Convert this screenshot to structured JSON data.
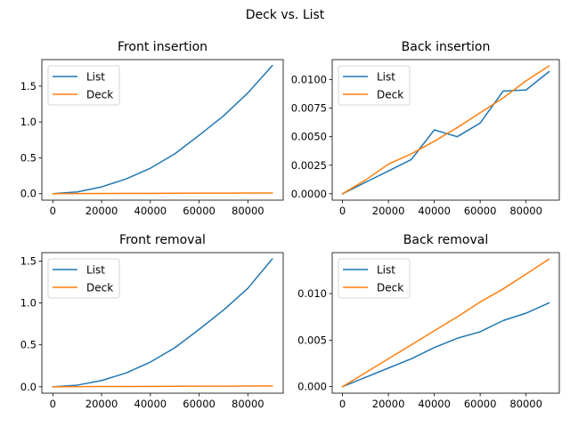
{
  "figure": {
    "title": "Deck vs. List"
  },
  "chart_data": [
    {
      "type": "line",
      "title": "Front insertion",
      "xlabel": "",
      "ylabel": "",
      "grid": false,
      "legend": "upper-left",
      "x": [
        0,
        10000,
        20000,
        30000,
        40000,
        50000,
        60000,
        70000,
        80000,
        90000
      ],
      "xlim": [
        -4500,
        94500
      ],
      "ylim": [
        -0.09,
        1.87
      ],
      "xticks": [
        0,
        20000,
        40000,
        60000,
        80000
      ],
      "xtick_labels": [
        "0",
        "20000",
        "40000",
        "60000",
        "80000"
      ],
      "yticks": [
        0,
        0.5,
        1.0,
        1.5
      ],
      "ytick_labels": [
        "0.0",
        "0.5",
        "1.0",
        "1.5"
      ],
      "series": [
        {
          "name": "List",
          "color": "#1f77b4",
          "values": [
            0.0,
            0.025,
            0.095,
            0.205,
            0.355,
            0.555,
            0.815,
            1.085,
            1.405,
            1.785
          ]
        },
        {
          "name": "Deck",
          "color": "#ff7f0e",
          "values": [
            0.0,
            0.002,
            0.003,
            0.004,
            0.005,
            0.006,
            0.007,
            0.008,
            0.009,
            0.01
          ]
        }
      ]
    },
    {
      "type": "line",
      "title": "Back insertion",
      "xlabel": "",
      "ylabel": "",
      "grid": false,
      "legend": "upper-left",
      "x": [
        0,
        10000,
        20000,
        30000,
        40000,
        50000,
        60000,
        70000,
        80000,
        90000
      ],
      "xlim": [
        -4500,
        94500
      ],
      "ylim": [
        -0.00056,
        0.01176
      ],
      "xticks": [
        0,
        20000,
        40000,
        60000,
        80000
      ],
      "xtick_labels": [
        "0",
        "20000",
        "40000",
        "60000",
        "80000"
      ],
      "yticks": [
        0,
        0.0025,
        0.005,
        0.0075,
        0.01
      ],
      "ytick_labels": [
        "0.0000",
        "0.0025",
        "0.0050",
        "0.0075",
        "0.0100"
      ],
      "series": [
        {
          "name": "List",
          "color": "#1f77b4",
          "values": [
            0.0,
            0.001,
            0.002,
            0.003,
            0.0056,
            0.005,
            0.0062,
            0.009,
            0.0091,
            0.0107
          ]
        },
        {
          "name": "Deck",
          "color": "#ff7f0e",
          "values": [
            0.0,
            0.0012,
            0.0026,
            0.0035,
            0.0046,
            0.0058,
            0.0071,
            0.0084,
            0.0099,
            0.0112
          ]
        }
      ]
    },
    {
      "type": "line",
      "title": "Front removal",
      "xlabel": "",
      "ylabel": "",
      "grid": false,
      "legend": "upper-left",
      "x": [
        0,
        10000,
        20000,
        30000,
        40000,
        50000,
        60000,
        70000,
        80000,
        90000
      ],
      "xlim": [
        -4500,
        94500
      ],
      "ylim": [
        -0.076,
        1.6
      ],
      "xticks": [
        0,
        20000,
        40000,
        60000,
        80000
      ],
      "xtick_labels": [
        "0",
        "20000",
        "40000",
        "60000",
        "80000"
      ],
      "yticks": [
        0,
        0.5,
        1.0,
        1.5
      ],
      "ytick_labels": [
        "0.0",
        "0.5",
        "1.0",
        "1.5"
      ],
      "series": [
        {
          "name": "List",
          "color": "#1f77b4",
          "values": [
            0.0,
            0.02,
            0.075,
            0.165,
            0.295,
            0.465,
            0.685,
            0.915,
            1.175,
            1.525
          ]
        },
        {
          "name": "Deck",
          "color": "#ff7f0e",
          "values": [
            0.0,
            0.002,
            0.003,
            0.004,
            0.005,
            0.006,
            0.007,
            0.008,
            0.009,
            0.01
          ]
        }
      ]
    },
    {
      "type": "line",
      "title": "Back removal",
      "xlabel": "",
      "ylabel": "",
      "grid": false,
      "legend": "upper-left",
      "x": [
        0,
        10000,
        20000,
        30000,
        40000,
        50000,
        60000,
        70000,
        80000,
        90000
      ],
      "xlim": [
        -4500,
        94500
      ],
      "ylim": [
        -0.0007,
        0.0144
      ],
      "xticks": [
        0,
        20000,
        40000,
        60000,
        80000
      ],
      "xtick_labels": [
        "0",
        "20000",
        "40000",
        "60000",
        "80000"
      ],
      "yticks": [
        0,
        0.005,
        0.01
      ],
      "ytick_labels": [
        "0.000",
        "0.005",
        "0.010"
      ],
      "series": [
        {
          "name": "List",
          "color": "#1f77b4",
          "values": [
            0.0,
            0.001,
            0.002,
            0.003,
            0.0042,
            0.0052,
            0.0059,
            0.0071,
            0.0079,
            0.009
          ]
        },
        {
          "name": "Deck",
          "color": "#ff7f0e",
          "values": [
            0.0,
            0.0015,
            0.003,
            0.0045,
            0.006,
            0.0075,
            0.0091,
            0.0105,
            0.0121,
            0.0137
          ]
        }
      ]
    }
  ]
}
